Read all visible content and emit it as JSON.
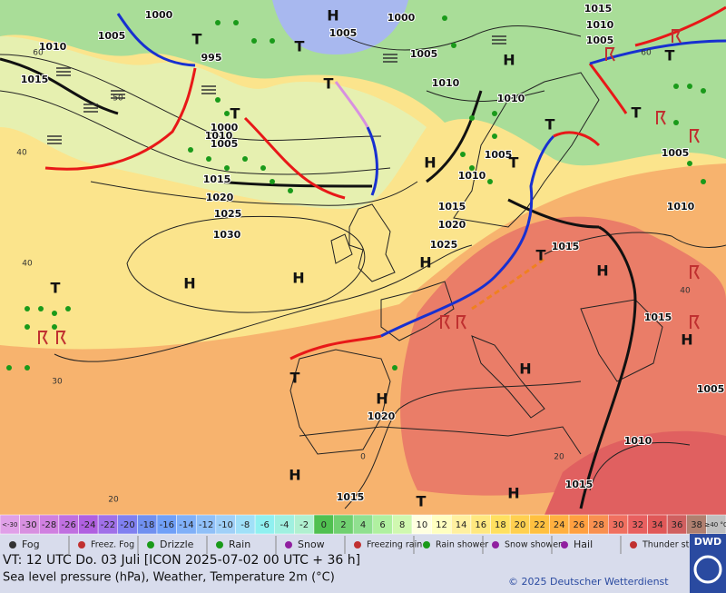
{
  "map": {
    "pressure_labels": [
      "1000",
      "1005",
      "1010",
      "1015",
      "995",
      "1000",
      "1010",
      "1005",
      "1015",
      "1020",
      "1025",
      "1030",
      "1005",
      "1000",
      "1005",
      "1010",
      "1010",
      "1015",
      "1010",
      "1005",
      "1005",
      "1010",
      "1015",
      "1020",
      "1025",
      "1015",
      "1015",
      "1005",
      "1010",
      "1015",
      "1015",
      "1020",
      "1010",
      "1005"
    ],
    "centers": [
      "H",
      "H",
      "H",
      "H",
      "H",
      "H",
      "H",
      "H",
      "H",
      "H",
      "H",
      "H",
      "T",
      "T",
      "T",
      "T",
      "T",
      "T",
      "T",
      "T",
      "T",
      "T",
      "T",
      "T"
    ],
    "grid_labels": [
      "60",
      "50",
      "40",
      "40",
      "30",
      "20",
      "0",
      "20",
      "40",
      "60"
    ]
  },
  "scale": {
    "labels": [
      "<-30",
      "-30",
      "-28",
      "-26",
      "-24",
      "-22",
      "-20",
      "-18",
      "-16",
      "-14",
      "-12",
      "-10",
      "-8",
      "-6",
      "-4",
      "-2",
      "0",
      "2",
      "4",
      "6",
      "8",
      "10",
      "12",
      "14",
      "16",
      "18",
      "20",
      "22",
      "24",
      "26",
      "28",
      "30",
      "32",
      "34",
      "36",
      "38",
      "≥40 °C"
    ],
    "colors": [
      "#e0a0e8",
      "#d890e0",
      "#d080e0",
      "#c070e0",
      "#b060e0",
      "#a070e8",
      "#8080f0",
      "#7090f0",
      "#70a0f8",
      "#80b0f8",
      "#90c0f8",
      "#a0d0f8",
      "#a0e0f8",
      "#90f0f0",
      "#a0f0e0",
      "#b0f0d0",
      "#50c050",
      "#70d070",
      "#90e090",
      "#b0f0a0",
      "#d0f8b0",
      "#ffffe0",
      "#ffffc0",
      "#fff0a0",
      "#ffe880",
      "#ffe060",
      "#ffd050",
      "#ffc040",
      "#ffb040",
      "#ffa040",
      "#f89050",
      "#f07060",
      "#e86060",
      "#e05858",
      "#d06060",
      "#b08070",
      "#c0c0c0"
    ]
  },
  "legend": {
    "items": [
      "Fog",
      "Freez. Fog",
      "Drizzle",
      "Rain",
      "Snow",
      "Freezing rain",
      "Rain shower",
      "Snow shower",
      "Hail",
      "Thunder storm"
    ]
  },
  "footer": {
    "valid_time": "VT: 12 UTC Do.  03 Juli [ICON 2025-07-02  00 UTC + 36 h]",
    "description": "Sea level pressure (hPa), Weather, Temperature 2m (°C)",
    "copyright": "© 2025 Deutscher Wetterdienst",
    "logo": "DWD"
  }
}
